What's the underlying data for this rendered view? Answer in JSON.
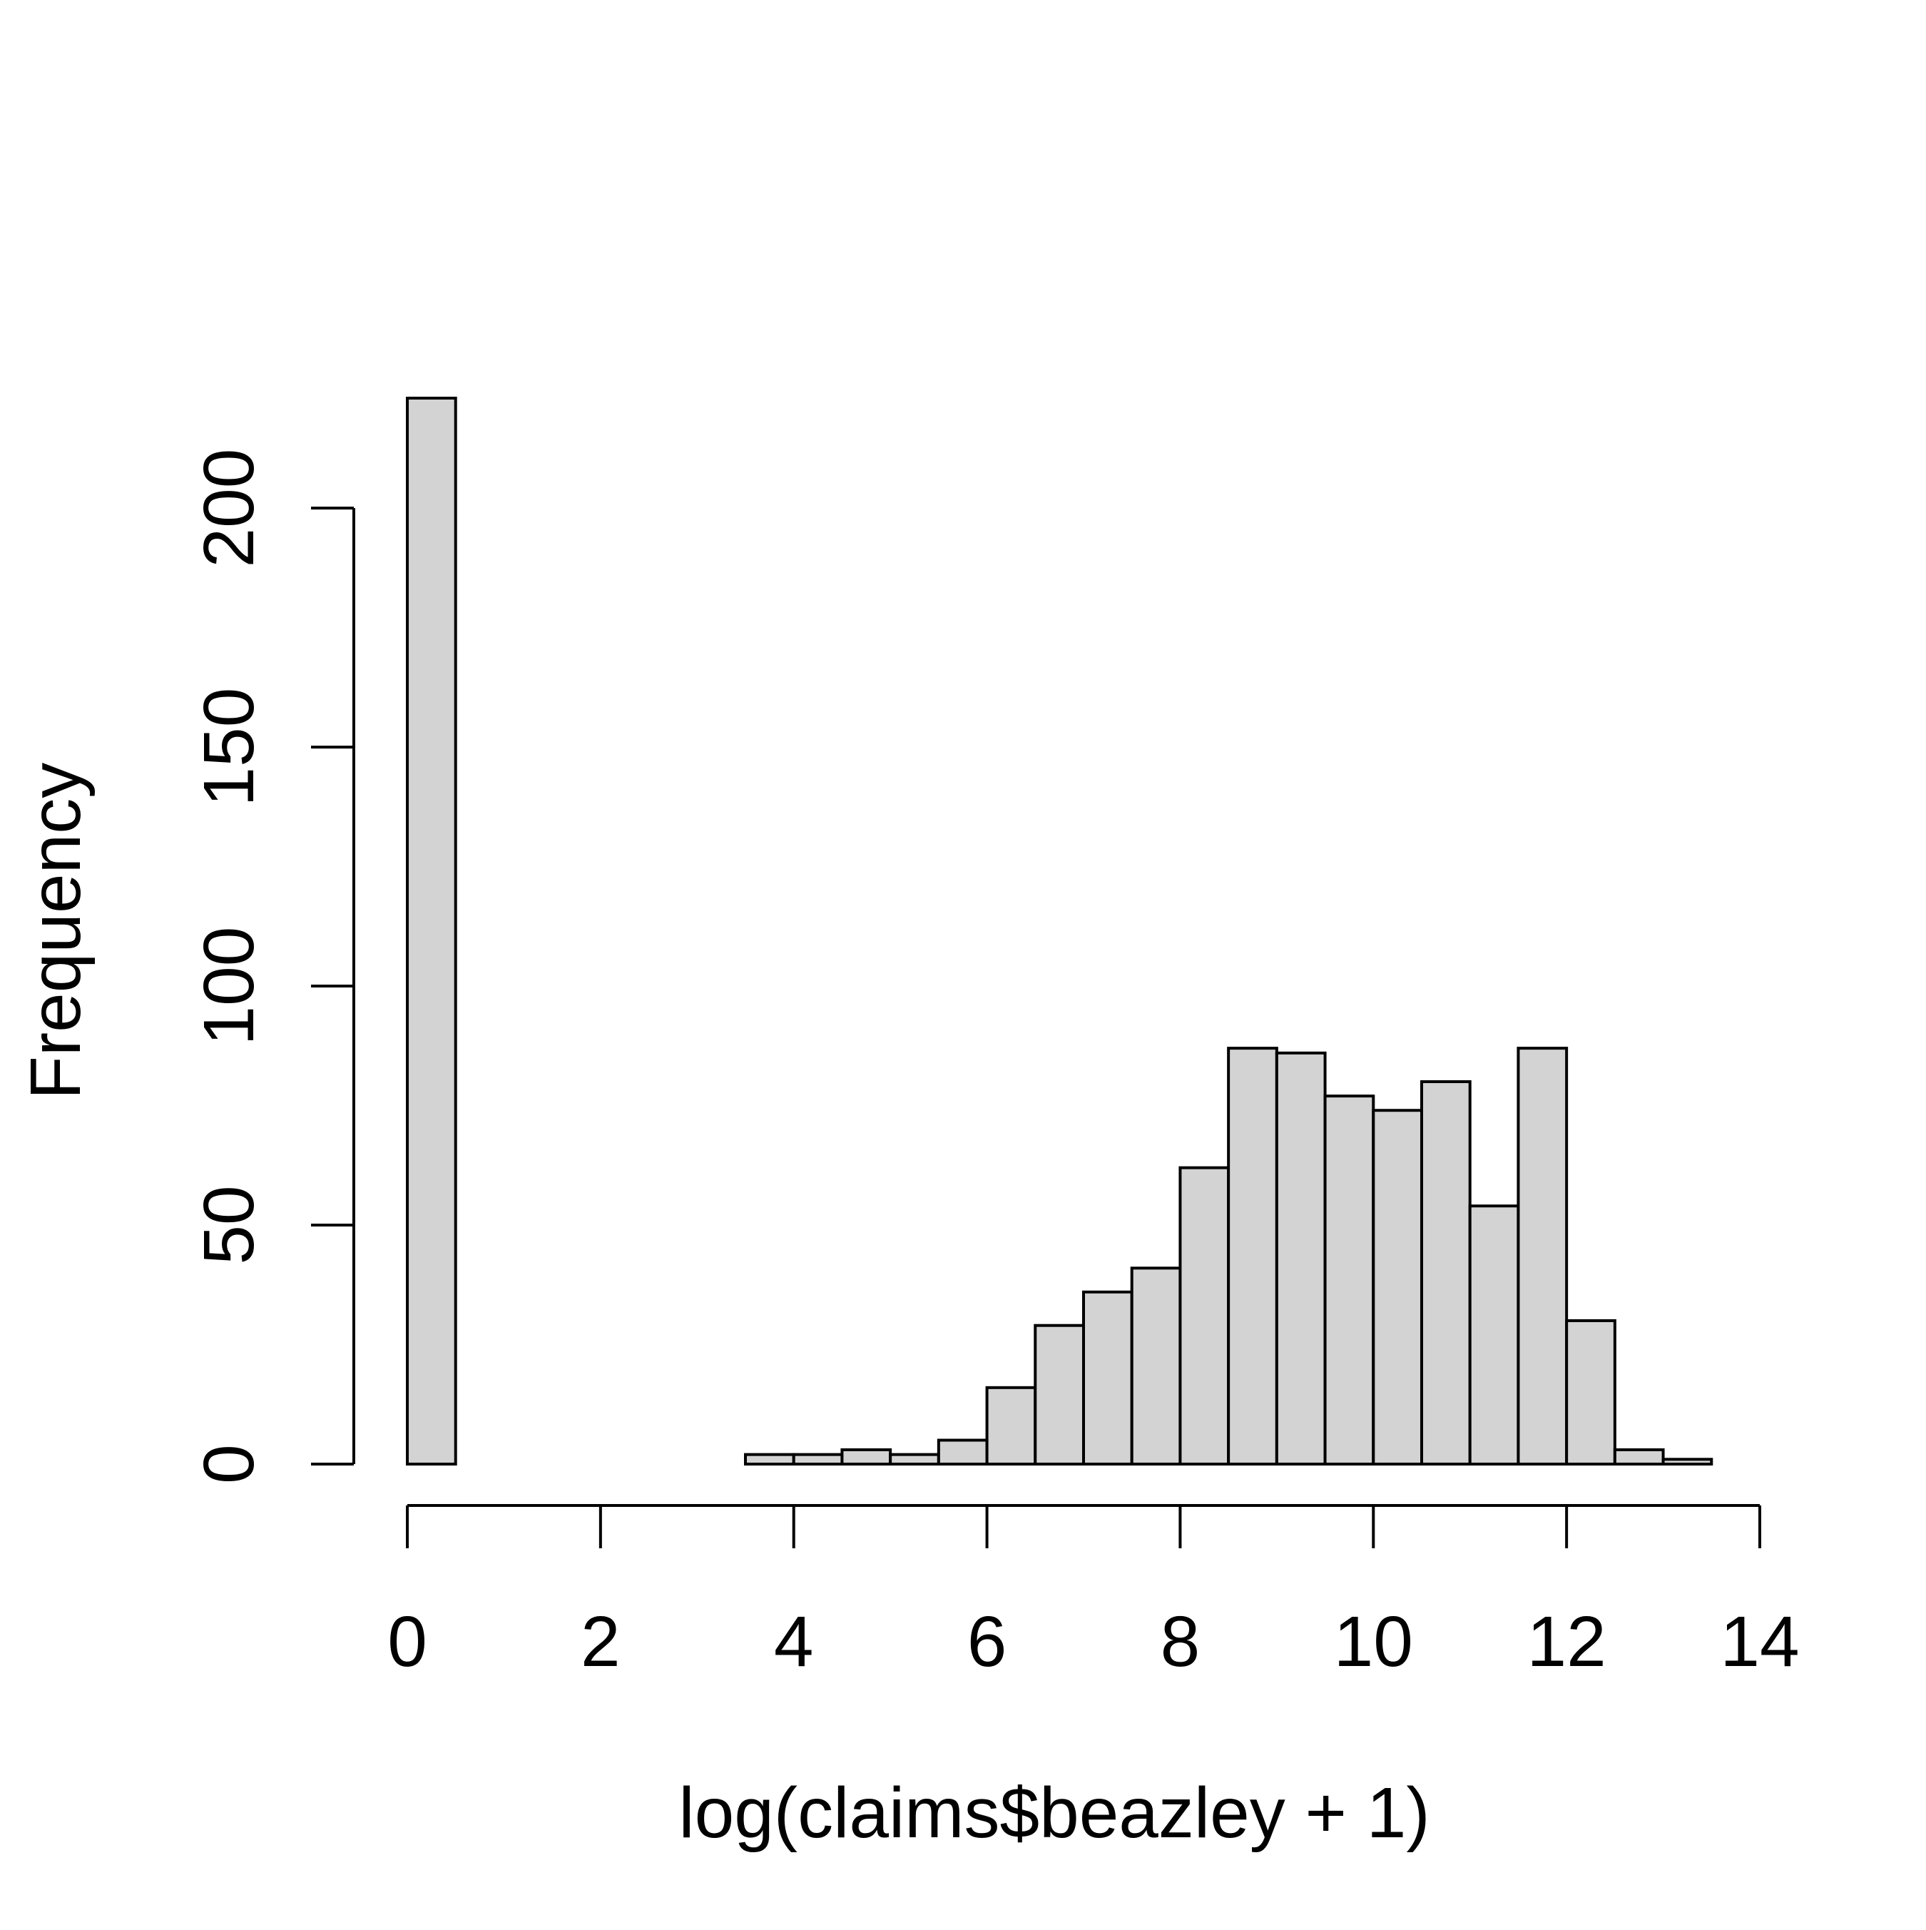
{
  "chart_data": {
    "type": "bar",
    "title": "",
    "xlabel": "log(claims$beazley + 1)",
    "ylabel": "Frequency",
    "bin_edges": [
      0,
      0.5,
      1,
      1.5,
      2,
      2.5,
      3,
      3.5,
      4,
      4.5,
      5,
      5.5,
      6,
      6.5,
      7,
      7.5,
      8,
      8.5,
      9,
      9.5,
      10,
      10.5,
      11,
      11.5,
      12,
      12.5,
      13,
      13.5
    ],
    "values": [
      223,
      0,
      0,
      0,
      0,
      0,
      0,
      2,
      2,
      3,
      2,
      5,
      16,
      29,
      36,
      41,
      62,
      87,
      86,
      77,
      74,
      80,
      54,
      87,
      30,
      3,
      1
    ],
    "xlim": [
      0,
      14
    ],
    "ylim": [
      0,
      223
    ],
    "x_ticks": [
      0,
      2,
      4,
      6,
      8,
      10,
      12,
      14
    ],
    "x_tick_labels": [
      "0",
      "2",
      "4",
      "6",
      "8",
      "10",
      "12",
      "14"
    ],
    "y_ticks": [
      0,
      50,
      100,
      150,
      200
    ],
    "y_tick_labels": [
      "0",
      "50",
      "100",
      "150",
      "200"
    ],
    "bar_fill": "#d3d3d3",
    "bar_stroke": "#000000",
    "grid": false,
    "legend": "none"
  }
}
